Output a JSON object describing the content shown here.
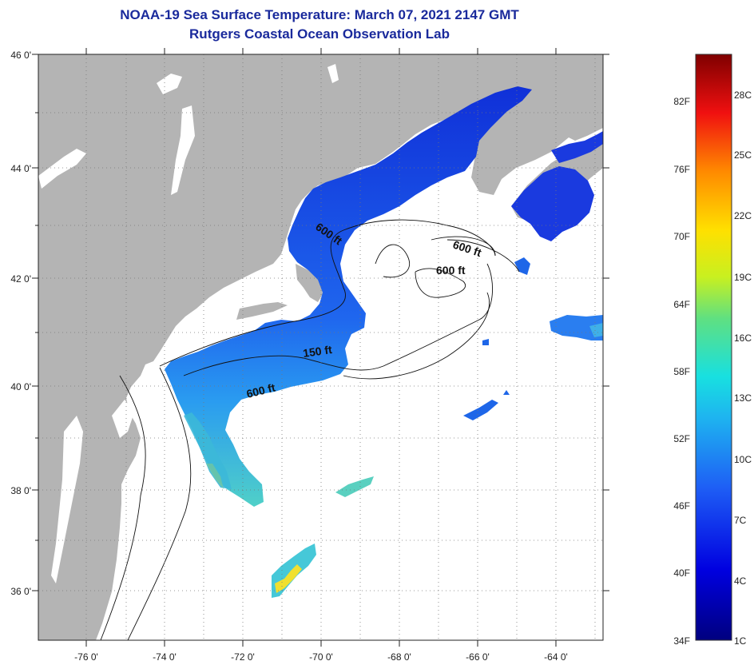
{
  "title": "NOAA-19 Sea Surface Temperature:  March 07, 2021 2147 GMT",
  "subtitle": "Rutgers Coastal Ocean Observation Lab",
  "lat_labels": [
    "46 0'",
    "44 0'",
    "42 0'",
    "40 0'",
    "38 0'",
    "36 0'"
  ],
  "lon_labels": [
    "-76 0'",
    "-74 0'",
    "-72 0'",
    "-70 0'",
    "-68 0'",
    "-66 0'",
    "-64 0'"
  ],
  "contour_labels": [
    "600 ft",
    "600 ft",
    "600 ft",
    "150 ft",
    "600 ft"
  ],
  "colorbar": {
    "fahrenheit": [
      "82F",
      "76F",
      "70F",
      "64F",
      "58F",
      "52F",
      "46F",
      "40F",
      "34F"
    ],
    "celsius": [
      "28C",
      "25C",
      "22C",
      "19C",
      "16C",
      "13C",
      "10C",
      "7C",
      "4C",
      "1C"
    ]
  },
  "colors": {
    "title": "#1a2a9c",
    "land": "#b4b4b4",
    "ocean_no_data": "#ffffff",
    "sst_cold": "#1a3adf",
    "sst_mid": "#2a8ef0",
    "sst_warm": "#f0e030"
  }
}
